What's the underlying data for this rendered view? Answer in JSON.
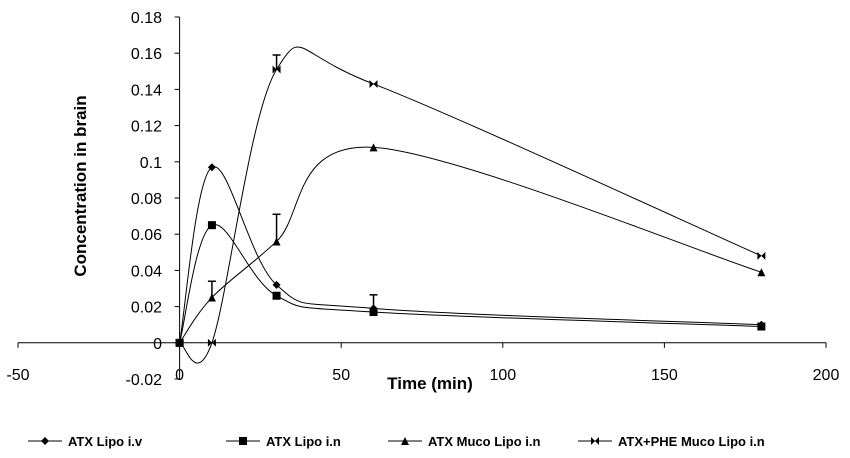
{
  "chart_data": {
    "type": "line",
    "title": "",
    "xlabel": "Time (min)",
    "ylabel": "Concentration in brain",
    "xlim": [
      -50,
      200
    ],
    "ylim": [
      -0.02,
      0.18
    ],
    "x_ticks": [
      -50,
      0,
      50,
      100,
      150,
      200
    ],
    "x_tick_labels": [
      "-50",
      "0",
      "50",
      "100",
      "150",
      "200"
    ],
    "y_ticks": [
      -0.02,
      0,
      0.02,
      0.04,
      0.06,
      0.08,
      0.1,
      0.12,
      0.14,
      0.16,
      0.18
    ],
    "y_tick_labels": [
      "-0.02",
      "0",
      "0.02",
      "0.04",
      "0.06",
      "0.08",
      "0.1",
      "0.12",
      "0.14",
      "0.16",
      "0.18"
    ],
    "grid": false,
    "legend_position": "bottom",
    "line_color": "#000000",
    "series": [
      {
        "name": "ATX Lipo i.v",
        "marker": "diamond",
        "x": [
          0,
          10,
          30,
          60,
          180
        ],
        "y": [
          0,
          0.097,
          0.032,
          0.019,
          0.01
        ],
        "err": [
          0,
          0,
          0,
          0,
          0
        ]
      },
      {
        "name": "ATX Lipo i.n",
        "marker": "square",
        "x": [
          0,
          10,
          30,
          60,
          180
        ],
        "y": [
          0,
          0.065,
          0.026,
          0.017,
          0.009
        ],
        "err": [
          0,
          0,
          0,
          0,
          0
        ]
      },
      {
        "name": "ATX Muco Lipo i.n",
        "marker": "triangle",
        "x": [
          0,
          10,
          30,
          60,
          180
        ],
        "y": [
          0,
          0.025,
          0.056,
          0.108,
          0.039
        ],
        "err": [
          0,
          0.009,
          0.015,
          0,
          0
        ]
      },
      {
        "name": "ATX+PHE Muco Lipo i.n",
        "marker": "bowtie",
        "x": [
          0,
          10,
          30,
          60,
          180
        ],
        "y": [
          0,
          0,
          0.151,
          0.143,
          0.048
        ],
        "err": [
          0,
          0,
          0.008,
          0,
          0
        ]
      }
    ],
    "extra_error_bars": [
      {
        "x": 60,
        "y": 0.02,
        "err": 0.0065
      }
    ]
  }
}
